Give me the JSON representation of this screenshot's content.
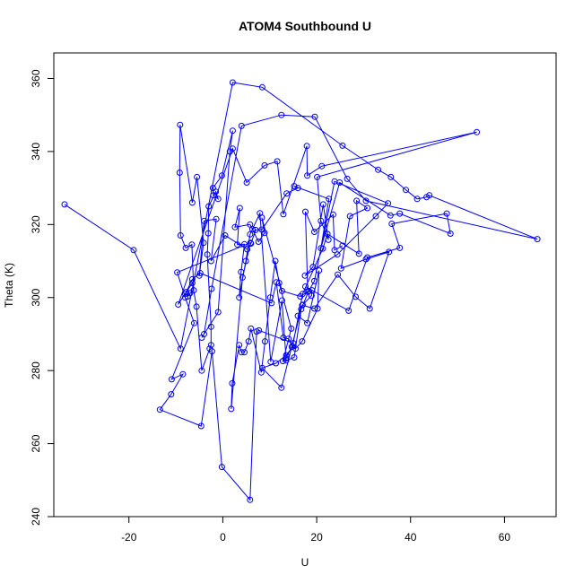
{
  "chart_data": {
    "type": "line",
    "title": "ATOM4 Southbound U",
    "xlabel": "U",
    "ylabel": "Theta (K)",
    "xlim": [
      -36,
      71
    ],
    "ylim": [
      240,
      367
    ],
    "xticks": [
      -20,
      0,
      20,
      40,
      60
    ],
    "yticks": [
      240,
      260,
      280,
      300,
      320,
      340,
      360
    ],
    "grid": false,
    "legend": "none",
    "color": "#0000ff",
    "markers": "open-circle",
    "series": [
      {
        "points": [
          [
            -33.7,
            325.5
          ],
          [
            -19,
            313
          ],
          [
            -9,
            286
          ],
          [
            2.1,
            358.9
          ],
          [
            8.4,
            357.6
          ],
          [
            25.5,
            341.6
          ],
          [
            33.1,
            335
          ],
          [
            35.8,
            333
          ],
          [
            39,
            329.5
          ],
          [
            41.4,
            327
          ],
          [
            43.4,
            327.5
          ],
          [
            44,
            328
          ],
          [
            67,
            316
          ],
          [
            30.5,
            326.5
          ],
          [
            26.5,
            332.5
          ],
          [
            19.6,
            349.5
          ],
          [
            12.5,
            350
          ],
          [
            4,
            347
          ],
          [
            -2.4,
            302.4
          ],
          [
            -4,
            290
          ],
          [
            -4.5,
            289
          ],
          [
            -1,
            296
          ],
          [
            1.5,
            340
          ],
          [
            2.1,
            345.7
          ],
          [
            -0.2,
            333.4
          ],
          [
            -2.1,
            330
          ],
          [
            -2,
            328
          ],
          [
            -1,
            327
          ],
          [
            -1.5,
            329
          ],
          [
            -3,
            325
          ],
          [
            -3.1,
            317.6
          ],
          [
            -3.3,
            311.8
          ],
          [
            -2.5,
            292
          ],
          [
            -2.5,
            287
          ],
          [
            -2.8,
            286
          ],
          [
            -4.5,
            280
          ],
          [
            -5.6,
            297.5
          ],
          [
            -6.5,
            304
          ],
          [
            -8,
            301
          ],
          [
            -7.5,
            300.3
          ],
          [
            -7,
            301.2
          ],
          [
            -6.2,
            302
          ],
          [
            -6.6,
            314.5
          ],
          [
            -7.9,
            313.6
          ],
          [
            -9,
            317
          ],
          [
            -9.2,
            334.2
          ],
          [
            -9.1,
            347.3
          ],
          [
            -6.5,
            326
          ],
          [
            -5.5,
            333
          ],
          [
            -4.1,
            315
          ],
          [
            -5,
            306
          ],
          [
            -4,
            321
          ],
          [
            -1.4,
            321.5
          ],
          [
            -2.5,
            310
          ],
          [
            0.5,
            317
          ],
          [
            5.2,
            313.2
          ],
          [
            6,
            314.8
          ],
          [
            7,
            318.5
          ],
          [
            8.3,
            318.6
          ],
          [
            13.6,
            328.5
          ],
          [
            16,
            330
          ],
          [
            15.2,
            330.5
          ],
          [
            22.6,
            327
          ],
          [
            20.9,
            313.5
          ],
          [
            24.9,
            331.5
          ],
          [
            35.7,
            322.5
          ],
          [
            37.7,
            323
          ],
          [
            48.5,
            317.5
          ],
          [
            47.7,
            323
          ],
          [
            36,
            320.2
          ],
          [
            37.7,
            313.6
          ],
          [
            30.8,
            311
          ],
          [
            26.8,
            296.4
          ],
          [
            17.6,
            303
          ],
          [
            19,
            302
          ],
          [
            18.9,
            300.5
          ],
          [
            17,
            298
          ],
          [
            16,
            295
          ],
          [
            18,
            293
          ],
          [
            20.5,
            307.4
          ],
          [
            20.2,
            297
          ],
          [
            16.9,
            288
          ],
          [
            15.5,
            286
          ],
          [
            14.7,
            286.5
          ],
          [
            13.4,
            283.3
          ],
          [
            12.8,
            282.6
          ],
          [
            14.6,
            291.5
          ],
          [
            12,
            304
          ],
          [
            11.2,
            310
          ],
          [
            10.1,
            300
          ],
          [
            9,
            288
          ],
          [
            8.2,
            279.5
          ],
          [
            6,
            291.5
          ],
          [
            5.5,
            288
          ],
          [
            4.6,
            285
          ],
          [
            4,
            285
          ],
          [
            3.5,
            287
          ],
          [
            2,
            276.5
          ],
          [
            1.8,
            269.5
          ],
          [
            4.2,
            305.5
          ],
          [
            5.9,
            315
          ],
          [
            -9.7,
            306.9
          ],
          [
            -8,
            300
          ],
          [
            -6.1,
            293
          ],
          [
            -10.9,
            277.6
          ],
          [
            -8.5,
            279
          ],
          [
            -11,
            273.5
          ],
          [
            -13.4,
            269.3
          ],
          [
            -4.6,
            264.8
          ],
          [
            -2.3,
            285.3
          ],
          [
            -0.2,
            253.6
          ],
          [
            5.8,
            244.6
          ],
          [
            7.2,
            290.7
          ],
          [
            7.7,
            291
          ],
          [
            15,
            287.5
          ],
          [
            17,
            301
          ],
          [
            21.3,
            313.4
          ],
          [
            22.3,
            317.4
          ],
          [
            29,
            312
          ],
          [
            28.5,
            326.5
          ],
          [
            30.8,
            324.5
          ],
          [
            27.1,
            322.3
          ],
          [
            25.2,
            308
          ],
          [
            30.5,
            310.5
          ],
          [
            35.4,
            312.5
          ],
          [
            31.3,
            297
          ],
          [
            28.3,
            300.2
          ],
          [
            24.5,
            306.3
          ],
          [
            19.5,
            297
          ],
          [
            16.9,
            297.9
          ],
          [
            12.5,
            275.3
          ],
          [
            8.4,
            280.7
          ],
          [
            11.3,
            282
          ],
          [
            13.5,
            284.2
          ],
          [
            14.9,
            286.6
          ],
          [
            14,
            288.7
          ],
          [
            12.9,
            289
          ],
          [
            11.4,
            304.2
          ],
          [
            10.4,
            298.5
          ],
          [
            -4.8,
            306.7
          ],
          [
            -6.5,
            305
          ],
          [
            -7.8,
            301.5
          ],
          [
            -9.5,
            298.1
          ],
          [
            2.1,
            340.8
          ],
          [
            5.1,
            331.5
          ],
          [
            8.9,
            336.2
          ],
          [
            11.6,
            337.3
          ],
          [
            12.9,
            322.8
          ],
          [
            17.9,
            341.5
          ],
          [
            18,
            333.4
          ],
          [
            21.1,
            336
          ],
          [
            54.1,
            345.3
          ],
          [
            20.1,
            333
          ],
          [
            20.9,
            321
          ],
          [
            22.5,
            315.8
          ],
          [
            21.4,
            325.5
          ],
          [
            19.2,
            308.4
          ],
          [
            17.5,
            306
          ],
          [
            24.4,
            311.8
          ],
          [
            32.6,
            322.3
          ],
          [
            35.2,
            325.8
          ],
          [
            23.8,
            331.8
          ],
          [
            19.5,
            304.5
          ],
          [
            18.3,
            301.8
          ],
          [
            16.7,
            296.8
          ],
          [
            15.2,
            283.6
          ],
          [
            13.5,
            282.8
          ],
          [
            12.6,
            299.2
          ],
          [
            10.2,
            282.4
          ],
          [
            7.9,
            323.1
          ],
          [
            5.8,
            317.3
          ],
          [
            4.9,
            310
          ],
          [
            3.5,
            300
          ],
          [
            3.9,
            307
          ],
          [
            4.6,
            314.6
          ],
          [
            3.1,
            314.5
          ],
          [
            3.6,
            324.5
          ],
          [
            2.6,
            319.3
          ],
          [
            5.8,
            320
          ],
          [
            6.3,
            318.7
          ],
          [
            7.6,
            315.3
          ],
          [
            8.9,
            317.7
          ],
          [
            8.3,
            321.9
          ],
          [
            12.6,
            301.8
          ],
          [
            16.5,
            300.3
          ],
          [
            18.1,
            301.6
          ],
          [
            17.6,
            323.5
          ],
          [
            19.5,
            318
          ],
          [
            23.5,
            322.7
          ],
          [
            23.8,
            313
          ],
          [
            25.5,
            314.2
          ]
        ]
      }
    ]
  }
}
